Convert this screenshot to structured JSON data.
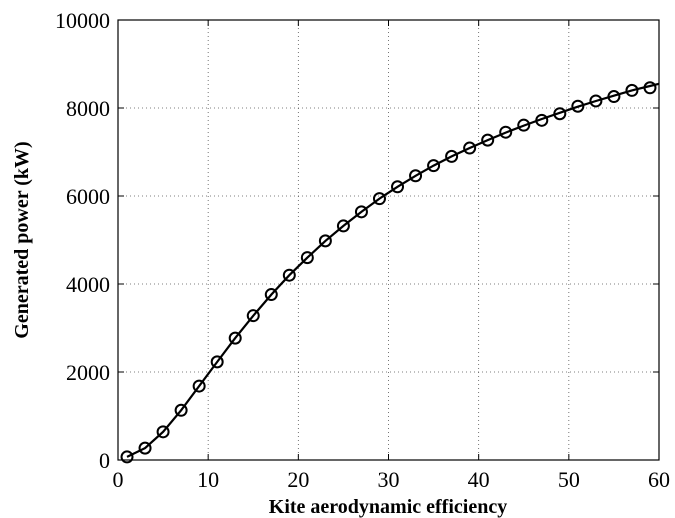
{
  "chart_data": {
    "type": "line",
    "title": "",
    "xlabel": "Kite aerodynamic efficiency",
    "ylabel": "Generated power (kW)",
    "xlim": [
      0,
      60
    ],
    "ylim": [
      0,
      10000
    ],
    "xticks": [
      0,
      10,
      20,
      30,
      40,
      50,
      60
    ],
    "yticks": [
      0,
      2000,
      4000,
      6000,
      8000,
      10000
    ],
    "xtick_labels": [
      "0",
      "10",
      "20",
      "30",
      "40",
      "50",
      "60"
    ],
    "ytick_labels": [
      "0",
      "2000",
      "4000",
      "6000",
      "8000",
      "10000"
    ],
    "grid": true,
    "legend": "none",
    "series": [
      {
        "style": "solid line",
        "x": [
          1,
          3,
          5,
          7,
          9,
          11,
          13,
          15,
          17,
          19,
          21,
          23,
          25,
          27,
          29,
          31,
          33,
          35,
          37,
          39,
          41,
          43,
          45,
          47,
          49,
          51,
          53,
          55,
          57,
          59,
          60
        ],
        "y": [
          70,
          270,
          640,
          1130,
          1680,
          2230,
          2770,
          3280,
          3760,
          4200,
          4600,
          4980,
          5320,
          5640,
          5940,
          6210,
          6460,
          6690,
          6900,
          7090,
          7270,
          7440,
          7600,
          7750,
          7890,
          8030,
          8160,
          8280,
          8400,
          8500,
          8550
        ]
      },
      {
        "style": "circle markers",
        "x": [
          1,
          3,
          5,
          7,
          9,
          11,
          13,
          15,
          17,
          19,
          21,
          23,
          25,
          27,
          29,
          31,
          33,
          35,
          37,
          39,
          41,
          43,
          45,
          47,
          49,
          51,
          53,
          55,
          57,
          59
        ],
        "y": [
          70,
          270,
          640,
          1130,
          1680,
          2230,
          2770,
          3280,
          3760,
          4200,
          4600,
          4980,
          5320,
          5640,
          5940,
          6210,
          6460,
          6690,
          6900,
          7090,
          7270,
          7450,
          7610,
          7720,
          7870,
          8040,
          8160,
          8260,
          8400,
          8460
        ]
      }
    ]
  }
}
